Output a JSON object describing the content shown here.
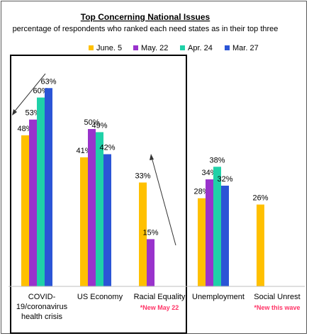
{
  "chart_data": {
    "type": "bar",
    "title": "Top Concerning National Issues",
    "subtitle": "percentage of respondents who ranked each need states as in their top three",
    "categories": [
      "COVID-19/coronavirus health crisis",
      "US Economy",
      "Racial Equality",
      "Unemployment",
      "Social Unrest"
    ],
    "category_label_lines": [
      [
        "COVID-",
        "19/coronavirus",
        "health crisis"
      ],
      [
        "US Economy"
      ],
      [
        "Racial Equality"
      ],
      [
        "Unemployment"
      ],
      [
        "Social Unrest"
      ]
    ],
    "category_notes": [
      "",
      "",
      "*New May 22",
      "",
      "*New this wave"
    ],
    "series": [
      {
        "name": "June. 5",
        "color": "#FFC000",
        "values": [
          48,
          41,
          33,
          28,
          26
        ]
      },
      {
        "name": "May. 22",
        "color": "#9933CC",
        "values": [
          53,
          50,
          15,
          34,
          null
        ]
      },
      {
        "name": "Apr. 24",
        "color": "#1FD1A8",
        "values": [
          60,
          49,
          null,
          38,
          null
        ]
      },
      {
        "name": "Mar. 27",
        "color": "#2B55D6",
        "values": [
          63,
          42,
          null,
          32,
          null
        ]
      }
    ],
    "value_suffix": "%",
    "ylim": [
      0,
      70
    ],
    "legend_position": "top",
    "note_color": "#FF3366",
    "grid": false
  }
}
